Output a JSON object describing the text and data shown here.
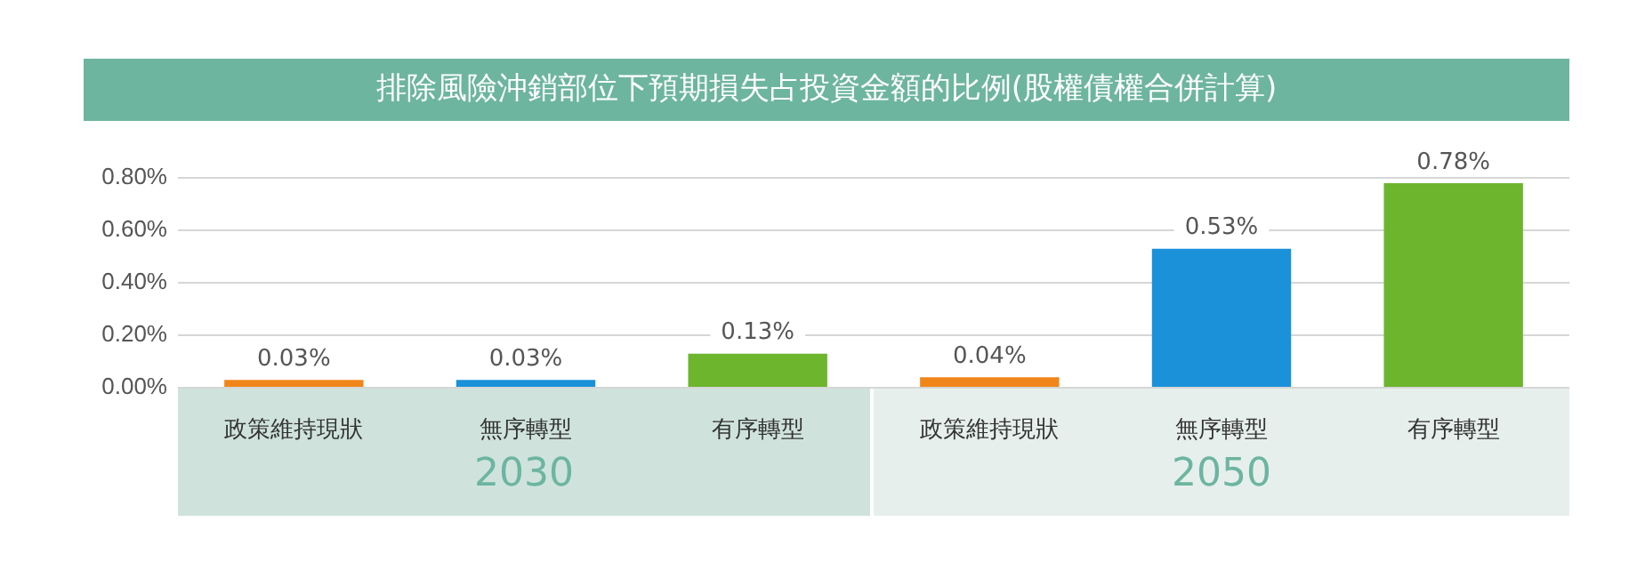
{
  "chart_data": {
    "type": "bar",
    "title": "排除風險沖銷部位下預期損失占投資金額的比例(股權債權合併計算)",
    "categories": [
      "政策維持現狀",
      "無序轉型",
      "有序轉型",
      "政策維持現狀",
      "無序轉型",
      "有序轉型"
    ],
    "values": [
      0.03,
      0.03,
      0.13,
      0.04,
      0.53,
      0.78
    ],
    "colors": [
      "#f0861a",
      "#1a91d9",
      "#6cb52d",
      "#f0861a",
      "#1a91d9",
      "#6cb52d"
    ],
    "value_labels": [
      "0.03%",
      "0.03%",
      "0.13%",
      "0.04%",
      "0.53%",
      "0.78%"
    ],
    "ylim": [
      0,
      0.8
    ],
    "yticks": [
      {
        "value": 0,
        "label": "0.00%"
      },
      {
        "value": 0.2,
        "label": "0.20%"
      },
      {
        "value": 0.4,
        "label": "0.40%"
      },
      {
        "value": 0.6,
        "label": "0.60%"
      },
      {
        "value": 0.8,
        "label": "0.80%"
      }
    ],
    "grid": "y",
    "annotations": [
      "2030",
      "2050"
    ]
  }
}
